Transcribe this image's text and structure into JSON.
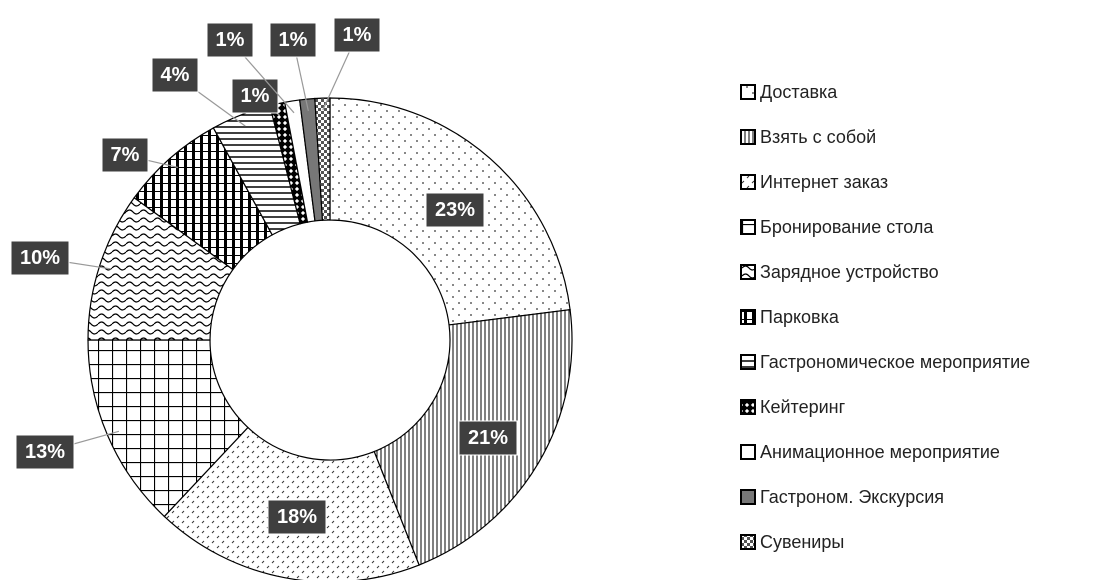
{
  "chart_data": {
    "type": "donut",
    "categories": [
      "Доставка",
      "Взять с собой",
      "Интернет заказ",
      "Бронирование стола",
      "Зарядное устройство",
      "Парковка",
      "Гастрономическое мероприятие",
      "Кейтеринг",
      "Анимационное мероприятие",
      "Гастроном. Экскурсия",
      "Сувениры"
    ],
    "values": [
      23,
      21,
      18,
      13,
      10,
      7,
      4,
      1,
      1,
      1,
      1
    ],
    "value_labels": [
      "23%",
      "21%",
      "18%",
      "13%",
      "10%",
      "7%",
      "4%",
      "1%",
      "1%",
      "1%",
      "1%"
    ],
    "legend": "right"
  }
}
